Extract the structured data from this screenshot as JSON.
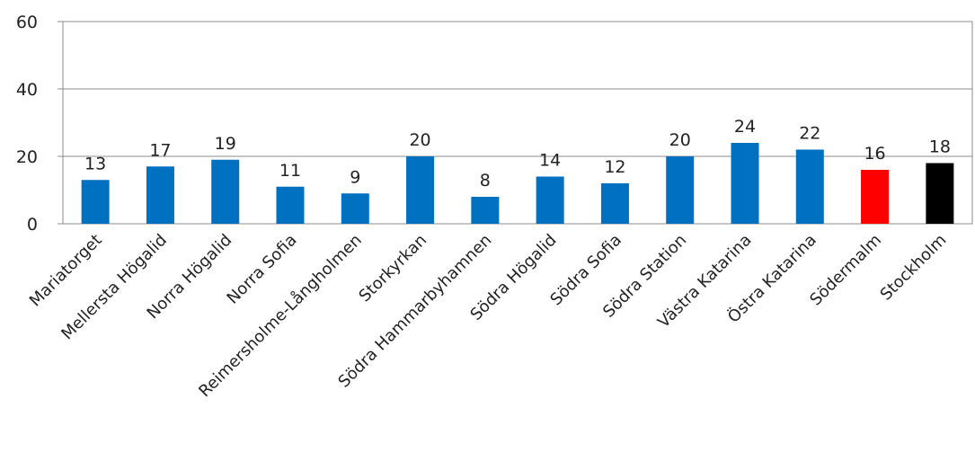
{
  "chart_data": {
    "type": "bar",
    "title": "",
    "xlabel": "",
    "ylabel": "",
    "ylim": [
      0,
      60
    ],
    "yticks": [
      0,
      20,
      40,
      60
    ],
    "grid": true,
    "legend": "none",
    "categories": [
      "Mariatorget",
      "Mellersta Högalid",
      "Norra Högalid",
      "Norra Sofia",
      "Reimersholme-Långholmen",
      "Storkyrkan",
      "Södra Hammarbyhamnen",
      "Södra Högalid",
      "Södra Sofia",
      "Södra Station",
      "Västra Katarina",
      "Östra Katarina",
      "Södermalm",
      "Stockholm"
    ],
    "values": [
      13,
      17,
      19,
      11,
      9,
      20,
      8,
      14,
      12,
      20,
      24,
      22,
      16,
      18
    ],
    "colors": [
      "#0070c0",
      "#0070c0",
      "#0070c0",
      "#0070c0",
      "#0070c0",
      "#0070c0",
      "#0070c0",
      "#0070c0",
      "#0070c0",
      "#0070c0",
      "#0070c0",
      "#0070c0",
      "#ff0000",
      "#000000"
    ]
  }
}
